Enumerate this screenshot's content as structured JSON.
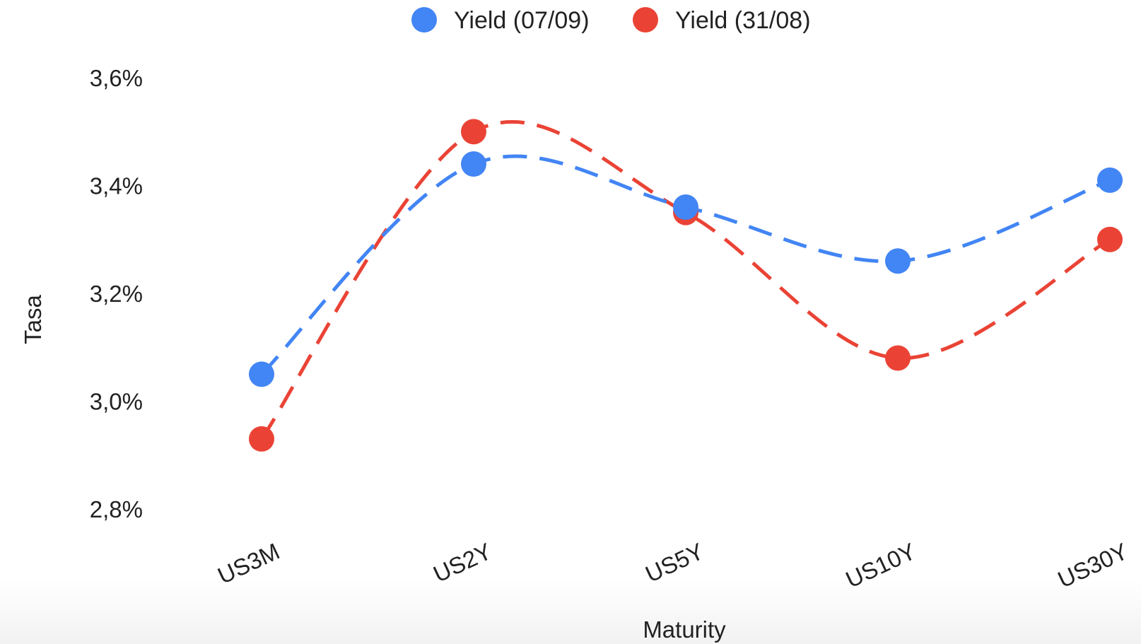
{
  "chart_data": {
    "type": "line",
    "categories": [
      "US3M",
      "US2Y",
      "US5Y",
      "US10Y",
      "US30Y"
    ],
    "series": [
      {
        "name": "Yield (07/09)",
        "values": [
          3.05,
          3.44,
          3.36,
          3.26,
          3.41
        ],
        "color": "#4285F4"
      },
      {
        "name": "Yield (31/08)",
        "values": [
          2.93,
          3.5,
          3.35,
          3.08,
          3.3
        ],
        "color": "#EA4335"
      }
    ],
    "title": "",
    "xlabel": "Maturity",
    "ylabel": "Tasa",
    "ylim": [
      2.8,
      3.6
    ],
    "yticks": [
      "2,8%",
      "3,0%",
      "3,2%",
      "3,4%",
      "3,6%"
    ],
    "ytick_values": [
      2.8,
      3.0,
      3.2,
      3.4,
      3.6
    ],
    "line_style": "dashed-smooth",
    "grid": false,
    "legend_position": "top-center"
  }
}
